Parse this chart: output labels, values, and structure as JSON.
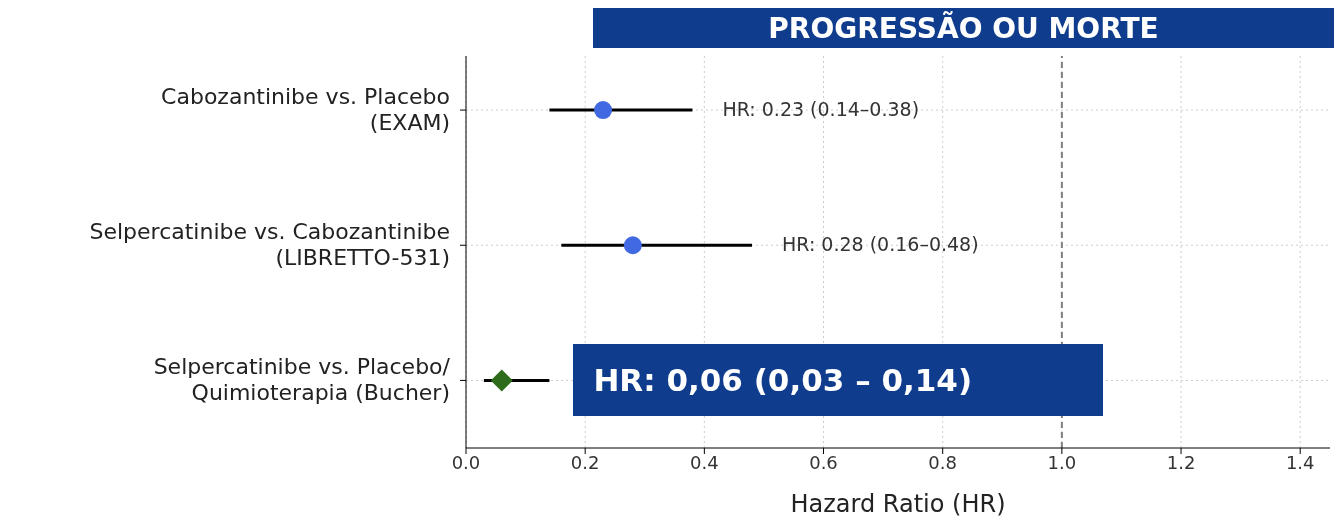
{
  "chart_data": {
    "type": "scatter",
    "title": "PROGRESSÃO OU MORTE",
    "orientation": "horizontal",
    "categories": [
      "Cabozantinibe vs. Placebo\n(EXAM)",
      "Selpercatinibe vs. Cabozantinibe\n(LIBRETTO-531)",
      "Selpercatinibe vs. Placebo/\nQuimioterapia (Bucher)"
    ],
    "series": [
      {
        "color": "#4169e1",
        "marker": "circle",
        "values": [
          0.23,
          0.28,
          null
        ],
        "errors": [
          [
            0.14,
            0.38
          ],
          [
            0.16,
            0.48
          ],
          null
        ]
      },
      {
        "color": "#2e6b1a",
        "marker": "diamond",
        "values": [
          null,
          null,
          0.06
        ],
        "errors": [
          null,
          null,
          [
            0.03,
            0.14
          ]
        ]
      }
    ],
    "xlabel": "Hazard Ratio (HR)",
    "xlim": [
      0,
      1.45
    ],
    "xticks": [
      {
        "value": 0,
        "label": "0.0"
      },
      0.2,
      0.4,
      0.6,
      0.8,
      {
        "value": 1,
        "label": "1.0"
      },
      1.2,
      1.4
    ],
    "grid": true,
    "ref_lines": [
      {
        "axis": "x",
        "value": 1,
        "color": "#808080",
        "line_style": "dashed"
      }
    ],
    "annotations": [
      "HR: 0.23 (0.14–0.38)",
      "HR: 0.28 (0.16–0.48)",
      "HR: 0,06 (0,03 – 0,14)"
    ]
  }
}
